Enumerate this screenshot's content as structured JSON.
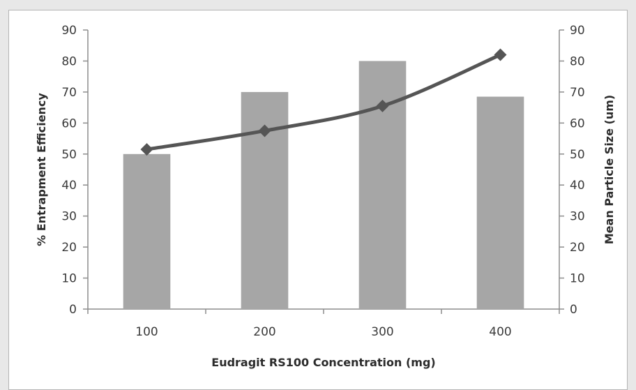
{
  "chart_data": {
    "type": "bar",
    "categories": [
      "100",
      "200",
      "300",
      "400"
    ],
    "series": [
      {
        "type": "bar",
        "axis": "left",
        "values": [
          50,
          70,
          80,
          68.5
        ]
      },
      {
        "type": "line",
        "axis": "right",
        "marker": "diamond",
        "values": [
          51.5,
          57.5,
          65.5,
          82
        ]
      }
    ],
    "xlabel": "Eudragit RS100 Concentration (mg)",
    "ylabel": "% Entrapment Efficiency",
    "y2label": "Mean Particle Size (um)",
    "ylim": [
      0,
      90
    ],
    "y2lim": [
      0,
      90
    ],
    "yticks": [
      "0",
      "10",
      "20",
      "30",
      "40",
      "50",
      "60",
      "70",
      "80",
      "90"
    ],
    "y2ticks": [
      "0",
      "10",
      "20",
      "30",
      "40",
      "50",
      "60",
      "70",
      "80",
      "90"
    ],
    "grid": false,
    "legend": "none",
    "colors": {
      "bar": "#a6a6a6",
      "line": "#555555",
      "axis": "#8c8c8c"
    }
  }
}
